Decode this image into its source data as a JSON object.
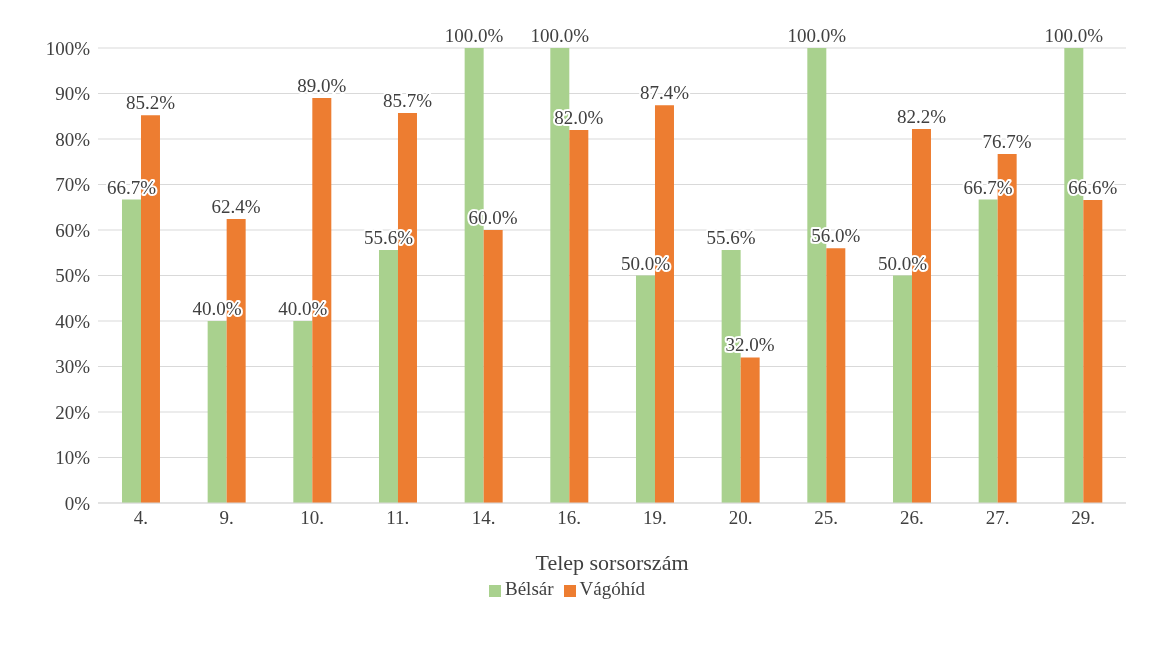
{
  "chart_data": {
    "type": "bar",
    "xlabel": "Telep sorsorszám",
    "categories": [
      "4.",
      "9.",
      "10.",
      "11.",
      "14.",
      "16.",
      "19.",
      "20.",
      "25.",
      "26.",
      "27.",
      "29."
    ],
    "series": [
      {
        "name": "Bélsár",
        "color": "#a9d18e",
        "values": [
          66.7,
          40.0,
          40.0,
          55.6,
          100.0,
          100.0,
          50.0,
          55.6,
          100.0,
          50.0,
          66.7,
          100.0
        ],
        "value_labels": [
          "66.7%",
          "40.0%",
          "40.0%",
          "55.6%",
          "100.0%",
          "100.0%",
          "50.0%",
          "55.6%",
          "100.0%",
          "50.0%",
          "66.7%",
          "100.0%"
        ]
      },
      {
        "name": "Vágóhíd",
        "color": "#ed7d31",
        "values": [
          85.2,
          62.4,
          89.0,
          85.7,
          60.0,
          82.0,
          87.4,
          32.0,
          56.0,
          82.2,
          76.7,
          66.6
        ],
        "value_labels": [
          "85.2%",
          "62.4%",
          "89.0%",
          "85.7%",
          "60.0%",
          "82.0%",
          "87.4%",
          "32.0%",
          "56.0%",
          "82.2%",
          "76.7%",
          "66.6%"
        ]
      }
    ],
    "ylim": [
      0,
      100
    ],
    "yticks": [
      {
        "value": 0,
        "label": "0%"
      },
      {
        "value": 10,
        "label": "10%"
      },
      {
        "value": 20,
        "label": "20%"
      },
      {
        "value": 30,
        "label": "30%"
      },
      {
        "value": 40,
        "label": "40%"
      },
      {
        "value": 50,
        "label": "50%"
      },
      {
        "value": 60,
        "label": "60%"
      },
      {
        "value": 70,
        "label": "70%"
      },
      {
        "value": 80,
        "label": "80%"
      },
      {
        "value": 90,
        "label": "90%"
      },
      {
        "value": 100,
        "label": "100%"
      }
    ],
    "grid": "y",
    "legend": "bottom"
  }
}
